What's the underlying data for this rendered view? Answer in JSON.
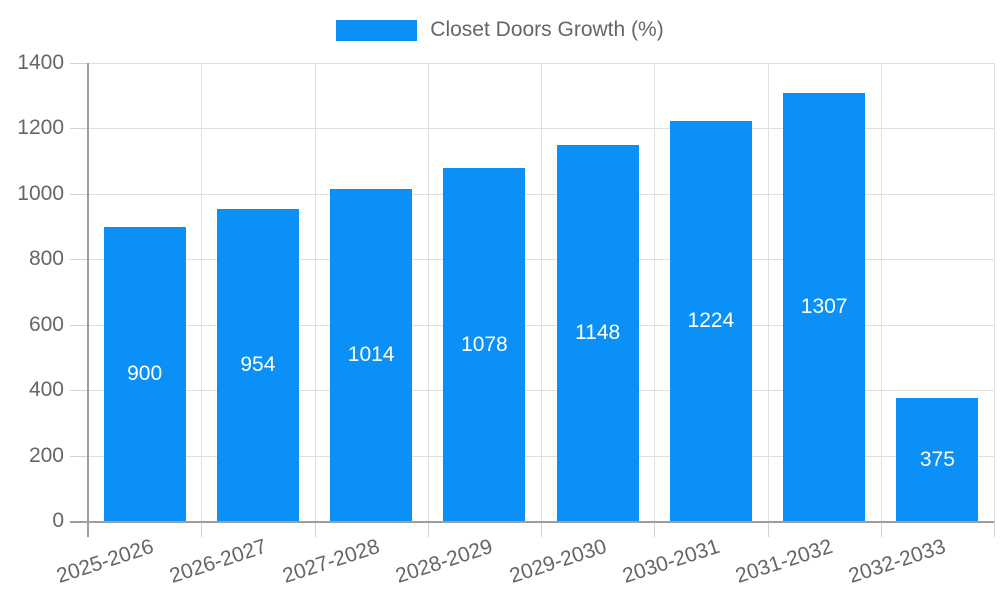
{
  "chart_data": {
    "type": "bar",
    "title": "",
    "legend_label": "Closet Doors Growth (%)",
    "legend_position": "top",
    "categories": [
      "2025-2026",
      "2026-2027",
      "2027-2028",
      "2028-2029",
      "2029-2030",
      "2030-2031",
      "2031-2032",
      "2032-2033"
    ],
    "series": [
      {
        "name": "Closet Doors Growth (%)",
        "values": [
          900,
          954,
          1014,
          1078,
          1148,
          1224,
          1307,
          375
        ]
      }
    ],
    "ylim": [
      0,
      1400
    ],
    "yticks": [
      0,
      200,
      400,
      600,
      800,
      1000,
      1200,
      1400
    ],
    "grid": true,
    "x_label_rotation_deg": -18,
    "colors": {
      "bar": "#0a90f6",
      "value_label": "#ffffff",
      "grid": "#e0e0e0",
      "axis": "#9e9e9e",
      "tick": "#d2d2d2",
      "text": "#666666",
      "background": "#ffffff"
    }
  }
}
